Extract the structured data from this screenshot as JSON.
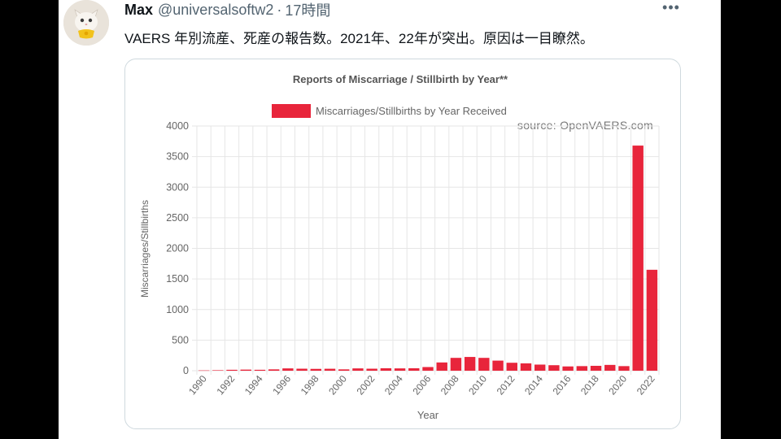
{
  "tweet": {
    "author_name": "Max",
    "handle": "@universalsoftw2",
    "separator": "·",
    "time": "17時間",
    "more_icon": "more-horizontal-icon",
    "text": "VAERS 年別流産、死産の報告数。2021年、22年が突出。原因は一目瞭然。"
  },
  "colors": {
    "bar": "#e8253b",
    "grid": "#e6e6e6",
    "axis_text": "#666666",
    "title_text": "#555555"
  },
  "chart_data": {
    "type": "bar",
    "title": "Reports of Miscarriage / Stillbirth by Year**",
    "source": "source: OpenVAERS.com",
    "xlabel": "Year",
    "ylabel": "Miscarriages/Stillbirths",
    "ylim": [
      0,
      4000
    ],
    "yticks": [
      0,
      500,
      1000,
      1500,
      2000,
      2500,
      3000,
      3500,
      4000
    ],
    "legend_position": "top-center",
    "grid": true,
    "categories": [
      "1990",
      "1991",
      "1992",
      "1993",
      "1994",
      "1995",
      "1996",
      "1997",
      "1998",
      "1999",
      "2000",
      "2001",
      "2002",
      "2003",
      "2004",
      "2005",
      "2006",
      "2007",
      "2008",
      "2009",
      "2010",
      "2011",
      "2012",
      "2013",
      "2014",
      "2015",
      "2016",
      "2017",
      "2018",
      "2019",
      "2020",
      "2021",
      "2022"
    ],
    "xtick_labels": [
      "1990",
      "1992",
      "1994",
      "1996",
      "1998",
      "2000",
      "2002",
      "2004",
      "2006",
      "2008",
      "2010",
      "2012",
      "2014",
      "2016",
      "2018",
      "2020",
      "2022"
    ],
    "series": [
      {
        "name": "Miscarriages/Stillbirths by Year Received",
        "values": [
          5,
          8,
          15,
          18,
          15,
          22,
          38,
          33,
          30,
          32,
          22,
          38,
          33,
          40,
          38,
          40,
          60,
          135,
          210,
          225,
          210,
          165,
          130,
          120,
          100,
          90,
          70,
          75,
          80,
          95,
          75,
          3680,
          1650
        ]
      }
    ]
  }
}
